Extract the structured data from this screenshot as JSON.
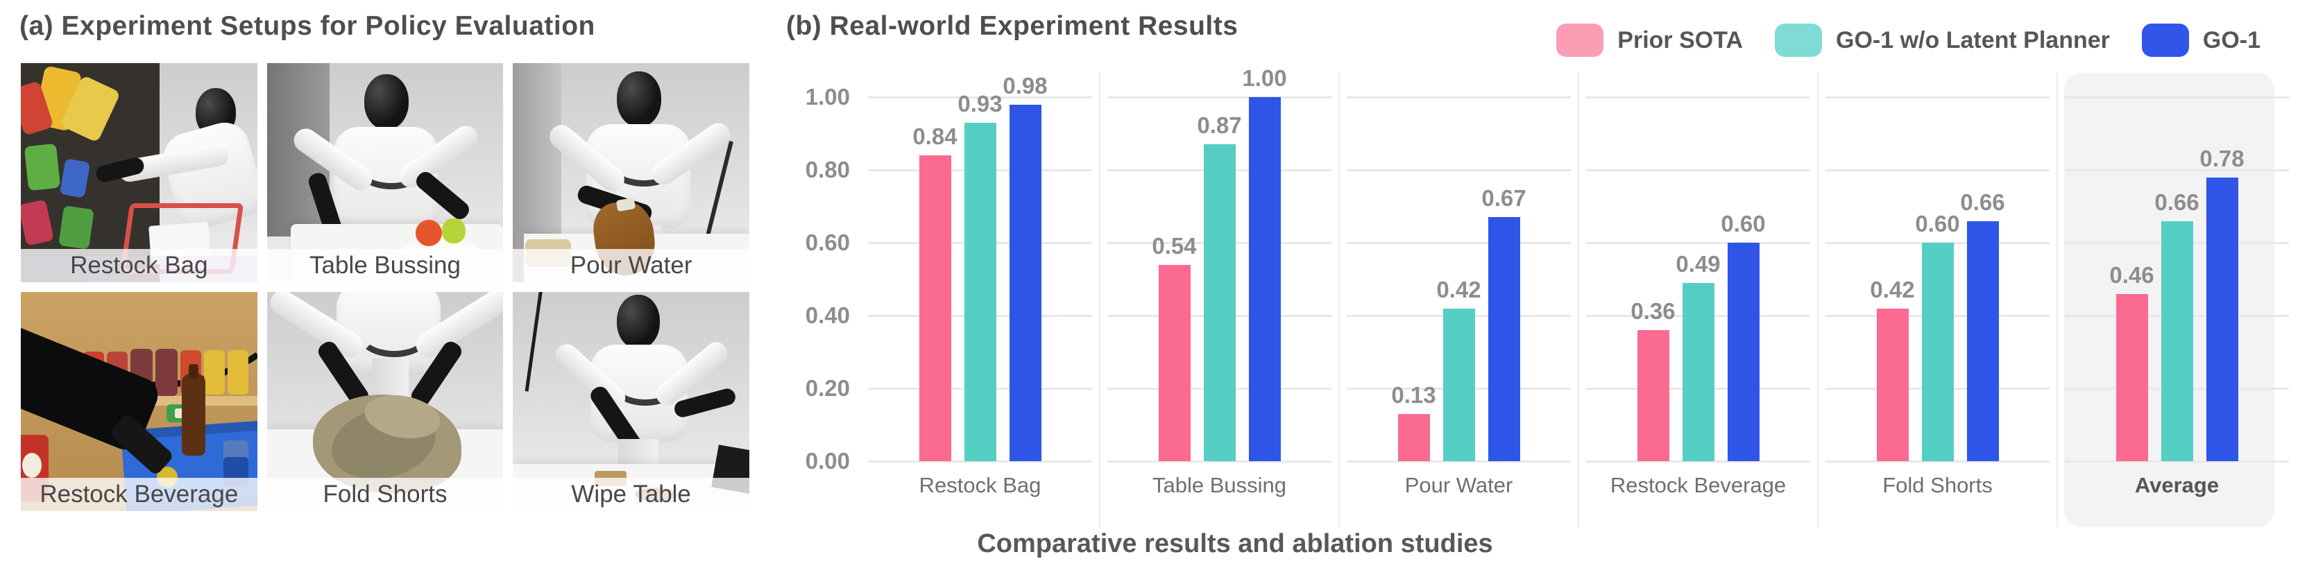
{
  "panel_a": {
    "title": "(a) Experiment Setups for Policy Evaluation",
    "photos": [
      {
        "label": "Restock Bag"
      },
      {
        "label": "Table Bussing"
      },
      {
        "label": "Pour Water"
      },
      {
        "label": "Restock Beverage"
      },
      {
        "label": "Fold Shorts"
      },
      {
        "label": "Wipe Table"
      }
    ]
  },
  "panel_b": {
    "title": "(b) Real-world Experiment Results",
    "caption": "Comparative results and ablation studies"
  },
  "chart_data": {
    "type": "bar",
    "title": "(b) Real-world Experiment Results",
    "categories": [
      "Restock Bag",
      "Table Bussing",
      "Pour Water",
      "Restock Beverage",
      "Fold Shorts",
      "Average"
    ],
    "series": [
      {
        "name": "Prior SOTA",
        "color": "#FB6A90",
        "legend_color": "#FB9DB5",
        "values": [
          0.84,
          0.54,
          0.13,
          0.36,
          0.42,
          0.46
        ]
      },
      {
        "name": "GO-1 w/o Latent Planner",
        "color": "#55CFC3",
        "legend_color": "#7EDCD4",
        "values": [
          0.93,
          0.87,
          0.42,
          0.49,
          0.6,
          0.66
        ]
      },
      {
        "name": "GO-1",
        "color": "#2F55E8",
        "legend_color": "#3155E8",
        "values": [
          0.98,
          1.0,
          0.67,
          0.6,
          0.66,
          0.78
        ]
      }
    ],
    "ylim": [
      0.0,
      1.0
    ],
    "yticks": [
      "0.00",
      "0.20",
      "0.40",
      "0.60",
      "0.80",
      "1.00"
    ],
    "xlabel": "",
    "ylabel": "",
    "grid": "horizontal",
    "legend_position": "top-right",
    "highlight_category": "Average",
    "value_labels": true
  }
}
